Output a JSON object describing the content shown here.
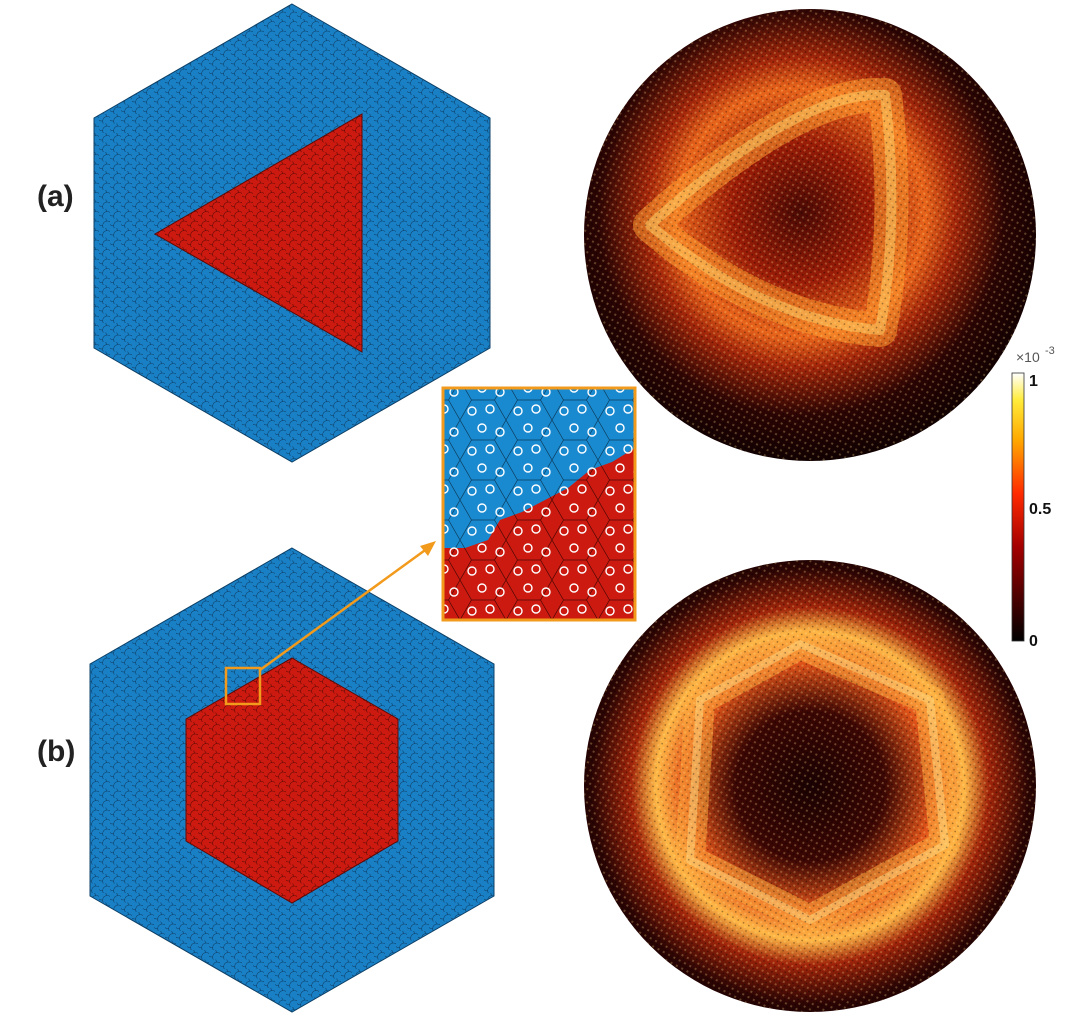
{
  "panels": [
    {
      "label": "(a)",
      "inner_shape": "triangle"
    },
    {
      "label": "(b)",
      "inner_shape": "hexagon"
    }
  ],
  "colors": {
    "outer_region": "#1a80c6",
    "inner_region": "#cc1a10",
    "lattice_edge": "#0c3f66",
    "inner_edge": "#5e0a05",
    "zoom_box": "#f29a1c",
    "inset_circle": "#ffffff"
  },
  "colorbar": {
    "exponent_prefix": "×10",
    "exponent": "-3",
    "ticks": [
      "1",
      "0.5",
      "0"
    ],
    "colormap": "hot"
  },
  "field_patterns": [
    {
      "panel": "(a)",
      "pattern": "triangular-ring"
    },
    {
      "panel": "(b)",
      "pattern": "hexagonal-ring"
    }
  ]
}
